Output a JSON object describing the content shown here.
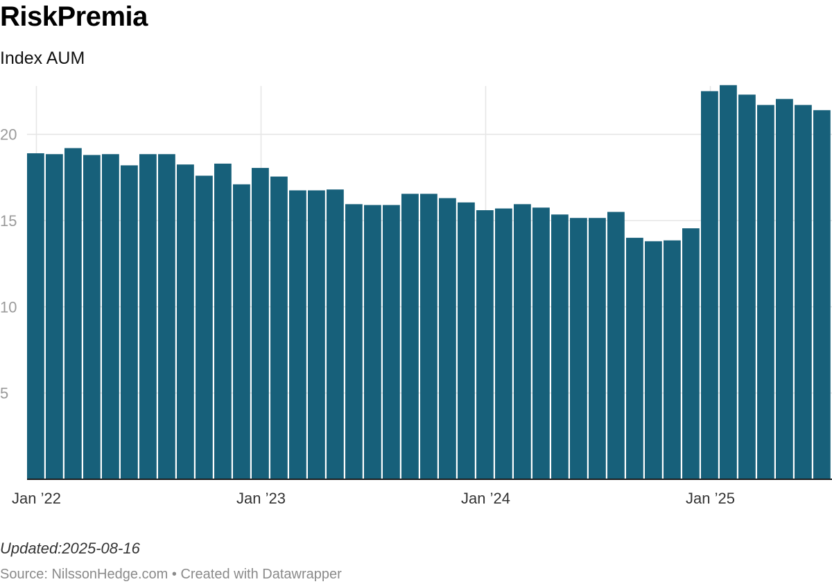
{
  "chart_data": {
    "type": "bar",
    "title": "RiskPremia",
    "subtitle": "Index AUM",
    "ylim": [
      0,
      22.8
    ],
    "y_ticks": [
      5,
      10,
      15,
      20
    ],
    "grid": true,
    "x_tick_labels": [
      {
        "label": "Jan ’22",
        "index": 0
      },
      {
        "label": "Jan ’23",
        "index": 12
      },
      {
        "label": "Jan ’24",
        "index": 24
      },
      {
        "label": "Jan ’25",
        "index": 36
      }
    ],
    "categories": [
      "2022-01",
      "2022-02",
      "2022-03",
      "2022-04",
      "2022-05",
      "2022-06",
      "2022-07",
      "2022-08",
      "2022-09",
      "2022-10",
      "2022-11",
      "2022-12",
      "2023-01",
      "2023-02",
      "2023-03",
      "2023-04",
      "2023-05",
      "2023-06",
      "2023-07",
      "2023-08",
      "2023-09",
      "2023-10",
      "2023-11",
      "2023-12",
      "2024-01",
      "2024-02",
      "2024-03",
      "2024-04",
      "2024-05",
      "2024-06",
      "2024-07",
      "2024-08",
      "2024-09",
      "2024-10",
      "2024-11",
      "2024-12",
      "2025-01",
      "2025-02",
      "2025-03",
      "2025-04",
      "2025-05",
      "2025-06",
      "2025-07"
    ],
    "values": [
      18.9,
      18.85,
      19.2,
      18.8,
      18.85,
      18.2,
      18.85,
      18.85,
      18.25,
      17.6,
      18.3,
      17.1,
      18.05,
      17.55,
      16.75,
      16.75,
      16.8,
      15.95,
      15.9,
      15.9,
      16.55,
      16.55,
      16.3,
      16.05,
      15.6,
      15.7,
      15.95,
      15.75,
      15.35,
      15.15,
      15.15,
      15.5,
      14.0,
      13.8,
      13.85,
      14.55,
      22.5,
      22.85,
      22.3,
      21.7,
      22.05,
      21.7,
      21.4
    ],
    "bar_color": "#17607a",
    "grid_color": "#e5e5e5",
    "axis_color": "#1a1a1a"
  },
  "footer": {
    "updated": "Updated:2025-08-16",
    "source": "Source: NilssonHedge.com • Created with Datawrapper"
  }
}
